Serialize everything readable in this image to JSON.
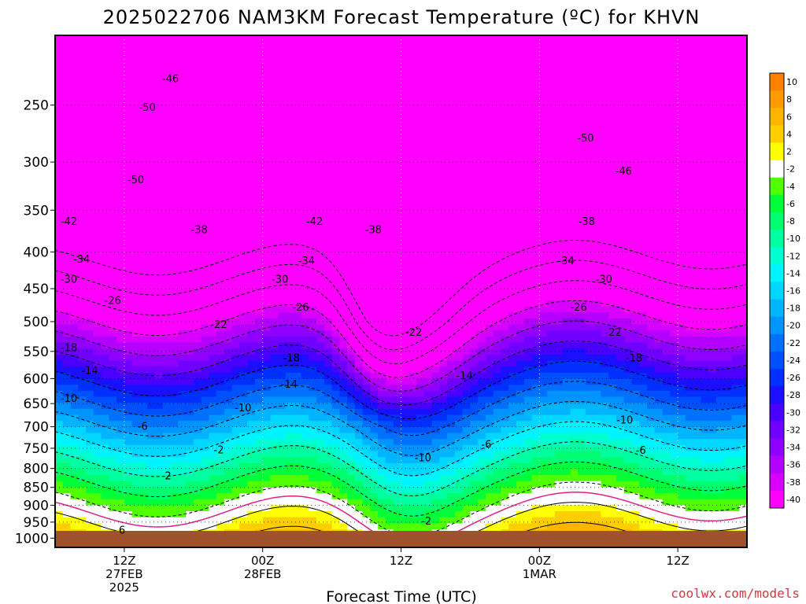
{
  "chart_data": {
    "type": "heatmap",
    "title": "2025022706 NAM3KM Forecast Temperature (ºC) for KHVN",
    "xlabel": "Forecast Time (UTC)",
    "ylabel": "",
    "y_scale": "log-pressure",
    "y_ticks": [
      "250",
      "300",
      "350",
      "400",
      "450",
      "500",
      "550",
      "600",
      "650",
      "700",
      "750",
      "800",
      "850",
      "900",
      "950",
      "1000"
    ],
    "y_range_hpa": [
      200,
      1030
    ],
    "x_ticks": [
      {
        "hours": 6,
        "line1": "12Z",
        "line2": "27FEB",
        "line3": "2025"
      },
      {
        "hours": 18,
        "line1": "00Z",
        "line2": "28FEB",
        "line3": ""
      },
      {
        "hours": 30,
        "line1": "12Z",
        "line2": "",
        "line3": ""
      },
      {
        "hours": 42,
        "line1": "00Z",
        "line2": "1MAR",
        "line3": ""
      },
      {
        "hours": 54,
        "line1": "12Z",
        "line2": "",
        "line3": ""
      }
    ],
    "x_range_hours": [
      0,
      60
    ],
    "colorbar_labels": [
      "10",
      "8",
      "6",
      "4",
      "2",
      "-2",
      "-4",
      "-6",
      "-8",
      "-10",
      "-12",
      "-14",
      "-16",
      "-18",
      "-20",
      "-22",
      "-24",
      "-26",
      "-28",
      "-30",
      "-32",
      "-34",
      "-36",
      "-38",
      "-40"
    ],
    "colorbar_colors": [
      "#ff8000",
      "#ff9a00",
      "#ffb400",
      "#ffce00",
      "#ffff00",
      "#ffffff",
      "#50ff00",
      "#00ff38",
      "#00ff70",
      "#00ffa0",
      "#00ffd0",
      "#00f4ff",
      "#00d6ff",
      "#00b4ff",
      "#0094ff",
      "#0070ff",
      "#0050ff",
      "#0030ff",
      "#1a10ff",
      "#4a00ff",
      "#7000ff",
      "#9000ff",
      "#b400ff",
      "#d800ff",
      "#ff00ff"
    ],
    "contour_labels": [
      {
        "text": "-46",
        "h": 10,
        "p": 230
      },
      {
        "text": "-50",
        "h": 8,
        "p": 252
      },
      {
        "text": "-50",
        "h": 7,
        "p": 318
      },
      {
        "text": "-42",
        "h": 1.2,
        "p": 363
      },
      {
        "text": "-38",
        "h": 12.5,
        "p": 373
      },
      {
        "text": "-34",
        "h": 2.3,
        "p": 410
      },
      {
        "text": "-30",
        "h": 1.2,
        "p": 437
      },
      {
        "text": "-26",
        "h": 5,
        "p": 468
      },
      {
        "text": "-22",
        "h": 14.2,
        "p": 505
      },
      {
        "text": "-18",
        "h": 1.2,
        "p": 544
      },
      {
        "text": "-14",
        "h": 3,
        "p": 585
      },
      {
        "text": "-10",
        "h": 1.2,
        "p": 640
      },
      {
        "text": "-6",
        "h": 7.6,
        "p": 700
      },
      {
        "text": "-2",
        "h": 14.2,
        "p": 755
      },
      {
        "text": "2",
        "h": 9.8,
        "p": 820
      },
      {
        "text": "6",
        "h": 5.8,
        "p": 976
      },
      {
        "text": "-50",
        "h": 46,
        "p": 278
      },
      {
        "text": "-46",
        "h": 49.3,
        "p": 309
      },
      {
        "text": "-42",
        "h": 22.5,
        "p": 363
      },
      {
        "text": "-38",
        "h": 27.6,
        "p": 373
      },
      {
        "text": "-34",
        "h": 21.8,
        "p": 412
      },
      {
        "text": "-30",
        "h": 19.5,
        "p": 437
      },
      {
        "text": "-26",
        "h": 21.3,
        "p": 478
      },
      {
        "text": "-22",
        "h": 31.1,
        "p": 518
      },
      {
        "text": "-18",
        "h": 20.5,
        "p": 562
      },
      {
        "text": "-14",
        "h": 20.3,
        "p": 612
      },
      {
        "text": "-10",
        "h": 16.3,
        "p": 660
      },
      {
        "text": "-10",
        "h": 31.9,
        "p": 774
      },
      {
        "text": "-14",
        "h": 35.5,
        "p": 595
      },
      {
        "text": "-6",
        "h": 37.4,
        "p": 742
      },
      {
        "text": "-2",
        "h": 32.2,
        "p": 948
      },
      {
        "text": "-38",
        "h": 46.1,
        "p": 363
      },
      {
        "text": "-34",
        "h": 44.3,
        "p": 412
      },
      {
        "text": "-30",
        "h": 47.6,
        "p": 437
      },
      {
        "text": "-26",
        "h": 45.4,
        "p": 478
      },
      {
        "text": "-22",
        "h": 48.4,
        "p": 518
      },
      {
        "text": "-18",
        "h": 50.2,
        "p": 562
      },
      {
        "text": "-10",
        "h": 49.4,
        "p": 686
      },
      {
        "text": "-6",
        "h": 50.8,
        "p": 756
      }
    ],
    "credit": "coolwx.com/models"
  }
}
